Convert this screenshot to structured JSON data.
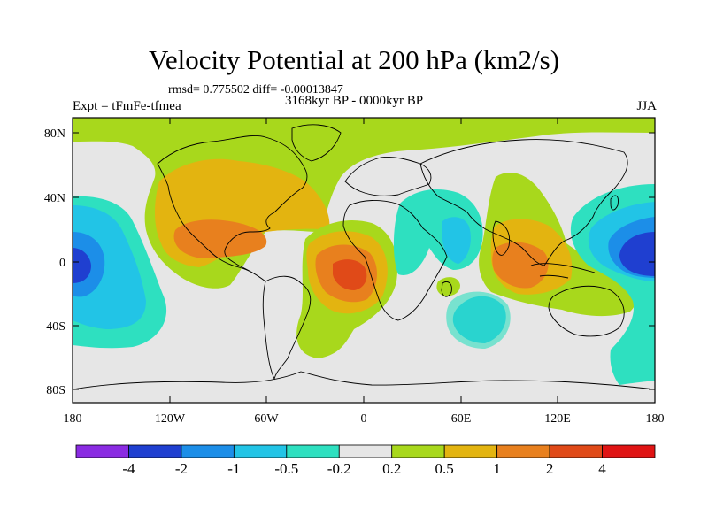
{
  "title": "Velocity Potential at 200 hPa (km2/s)",
  "stats": "rmsd= 0.775502 diff= -0.00013847",
  "experiment": "Expt = tFmFe-tfmea",
  "period": "3168kyr BP - 0000kyr BP",
  "season": "JJA",
  "axes": {
    "y_ticks": [
      "80N",
      "40N",
      "0",
      "40S",
      "80S"
    ],
    "x_ticks": [
      "180",
      "120W",
      "60W",
      "0",
      "60E",
      "120E",
      "180"
    ]
  },
  "colorbar": {
    "labels": [
      "-4",
      "-2",
      "-1",
      "-0.5",
      "-0.2",
      "0.2",
      "0.5",
      "1",
      "2",
      "4"
    ],
    "colors": [
      "#8a2be2",
      "#1f3fd0",
      "#1c8ee8",
      "#22c4e6",
      "#2ee0c0",
      "#e6e6e6",
      "#a8d81c",
      "#e3b410",
      "#e8801e",
      "#e04a18",
      "#e01414"
    ]
  },
  "palette": {
    "neutral": "#e6e6e6",
    "yellow_green": "#a8d81c",
    "orange_light": "#e3b410",
    "orange": "#e8801e",
    "orange_red": "#e04a18",
    "cyan_green": "#2ee0c0",
    "cyan": "#22c4e6",
    "blue_light": "#1c8ee8",
    "blue": "#1f3fd0"
  }
}
